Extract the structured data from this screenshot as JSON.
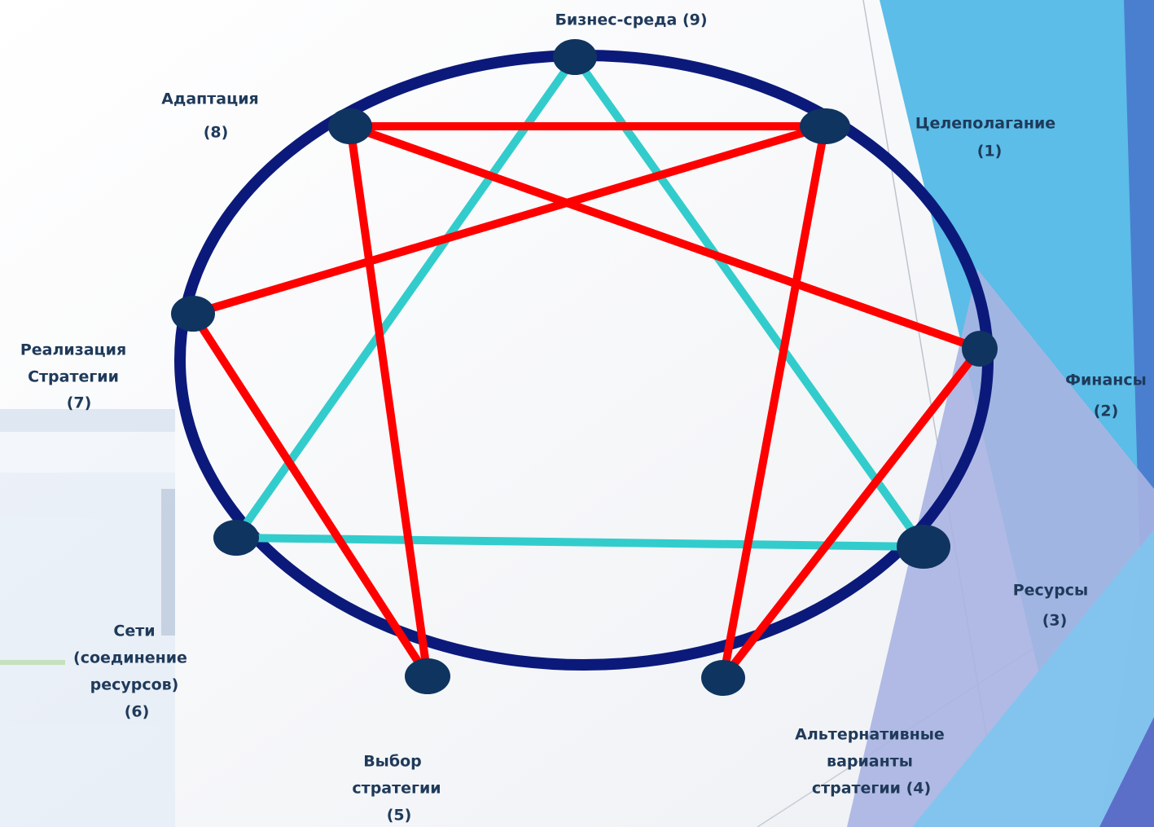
{
  "nodes": [
    {
      "label": [
        "Целеполагание",
        "(1)"
      ]
    },
    {
      "label": [
        "Финансы",
        "(2)"
      ]
    },
    {
      "label": [
        "Ресурсы",
        "(3)"
      ]
    },
    {
      "label": [
        "Альтернативные",
        "варианты",
        "стратегии (4)"
      ]
    },
    {
      "label": [
        "Выбор",
        "стратегии",
        "(5)"
      ]
    },
    {
      "label": [
        "Сети",
        "(соединение",
        "ресурсов)",
        "(6)"
      ]
    },
    {
      "label": [
        "Реализация",
        "Стратегии",
        "(7)"
      ]
    },
    {
      "label": [
        "Адаптация",
        "(8)"
      ]
    },
    {
      "label": [
        "Бизнес-среда (9)"
      ]
    }
  ]
}
